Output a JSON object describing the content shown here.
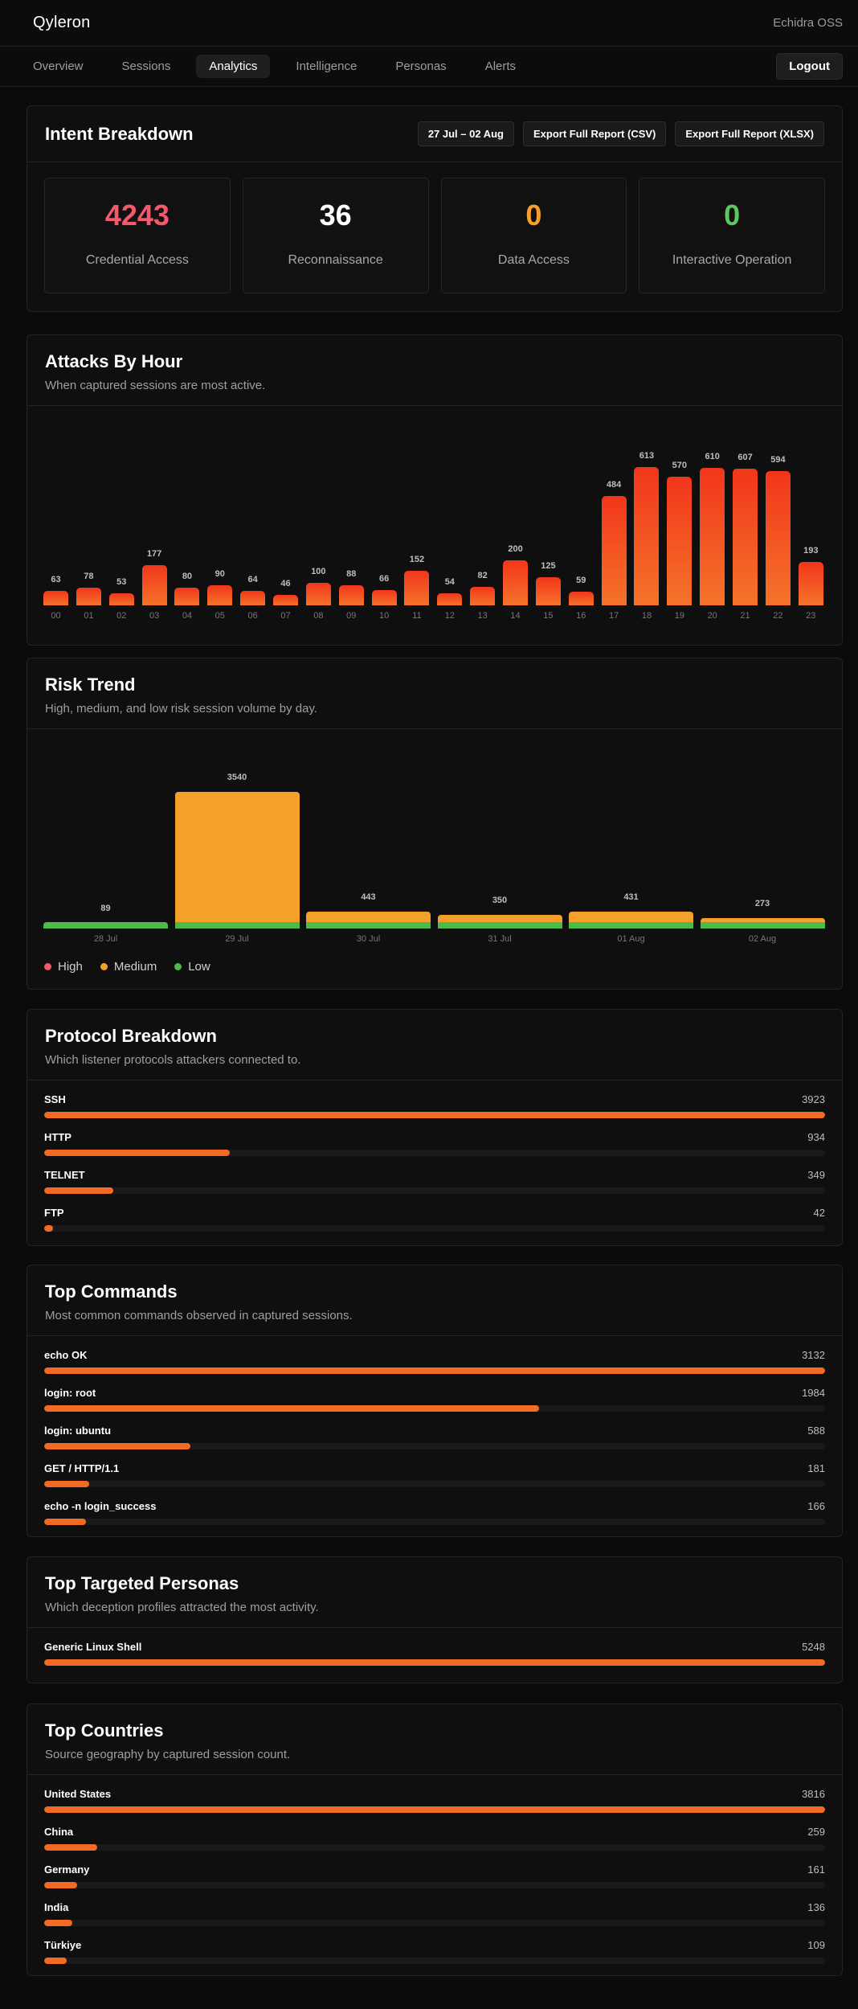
{
  "header": {
    "brand": "Qyleron",
    "org": "Echidra OSS"
  },
  "nav": {
    "tabs": [
      {
        "label": "Overview",
        "active": false
      },
      {
        "label": "Sessions",
        "active": false
      },
      {
        "label": "Analytics",
        "active": true
      },
      {
        "label": "Intelligence",
        "active": false
      },
      {
        "label": "Personas",
        "active": false
      },
      {
        "label": "Alerts",
        "active": false
      }
    ],
    "logout_label": "Logout"
  },
  "intent": {
    "title": "Intent Breakdown",
    "date_range": "27 Jul – 02 Aug",
    "export_csv": "Export Full Report (CSV)",
    "export_xlsx": "Export Full Report (XLSX)",
    "stats": [
      {
        "value": "4243",
        "label": "Credential Access",
        "color": "#f2596b"
      },
      {
        "value": "36",
        "label": "Reconnaissance",
        "color": "#ffffff"
      },
      {
        "value": "0",
        "label": "Data Access",
        "color": "#f5a02a"
      },
      {
        "value": "0",
        "label": "Interactive Operation",
        "color": "#5dc85d"
      }
    ]
  },
  "hours": {
    "title": "Attacks By Hour",
    "subtitle": "When captured sessions are most active."
  },
  "risk": {
    "title": "Risk Trend",
    "subtitle": "High, medium, and low risk session volume by day.",
    "legend": [
      {
        "label": "High",
        "color": "#f2596b"
      },
      {
        "label": "Medium",
        "color": "#f5a02a"
      },
      {
        "label": "Low",
        "color": "#4cbb4c"
      }
    ]
  },
  "protocols": {
    "title": "Protocol Breakdown",
    "subtitle": "Which listener protocols attackers connected to.",
    "items": [
      {
        "label": "SSH",
        "count": 3923
      },
      {
        "label": "HTTP",
        "count": 934
      },
      {
        "label": "TELNET",
        "count": 349
      },
      {
        "label": "FTP",
        "count": 42
      }
    ]
  },
  "commands": {
    "title": "Top Commands",
    "subtitle": "Most common commands observed in captured sessions.",
    "items": [
      {
        "label": "echo OK",
        "count": 3132
      },
      {
        "label": "login: root",
        "count": 1984
      },
      {
        "label": "login: ubuntu",
        "count": 588
      },
      {
        "label": "GET / HTTP/1.1",
        "count": 181
      },
      {
        "label": "echo -n login_success",
        "count": 166
      }
    ]
  },
  "personas": {
    "title": "Top Targeted Personas",
    "subtitle": "Which deception profiles attracted the most activity.",
    "items": [
      {
        "label": "Generic Linux Shell",
        "count": 5248
      }
    ]
  },
  "countries": {
    "title": "Top Countries",
    "subtitle": "Source geography by captured session count.",
    "items": [
      {
        "label": "United States",
        "count": 3816
      },
      {
        "label": "China",
        "count": 259
      },
      {
        "label": "Germany",
        "count": 161
      },
      {
        "label": "India",
        "count": 136
      },
      {
        "label": "Türkiye",
        "count": 109
      }
    ]
  },
  "chart_data": [
    {
      "type": "bar",
      "title": "Attacks By Hour",
      "categories": [
        "00",
        "01",
        "02",
        "03",
        "04",
        "05",
        "06",
        "07",
        "08",
        "09",
        "10",
        "11",
        "12",
        "13",
        "14",
        "15",
        "16",
        "17",
        "18",
        "19",
        "20",
        "21",
        "22",
        "23"
      ],
      "values": [
        63,
        78,
        53,
        177,
        80,
        90,
        64,
        46,
        100,
        88,
        66,
        152,
        54,
        82,
        200,
        125,
        59,
        484,
        613,
        570,
        610,
        607,
        594,
        193
      ],
      "ylim": [
        0,
        650
      ],
      "grid": false
    },
    {
      "type": "bar",
      "stacked": true,
      "title": "Risk Trend",
      "categories": [
        "28 Jul",
        "29 Jul",
        "30 Jul",
        "31 Jul",
        "01 Aug",
        "02 Aug"
      ],
      "totals": [
        89,
        3540,
        443,
        350,
        431,
        273
      ],
      "series": [
        {
          "name": "High",
          "values": [
            0,
            0,
            0,
            0,
            0,
            0
          ]
        },
        {
          "name": "Medium",
          "values": [
            20,
            3350,
            300,
            215,
            295,
            150
          ]
        },
        {
          "name": "Low",
          "values": [
            69,
            190,
            143,
            135,
            136,
            123
          ]
        }
      ],
      "legend": "bottom-left",
      "grid": false
    }
  ]
}
